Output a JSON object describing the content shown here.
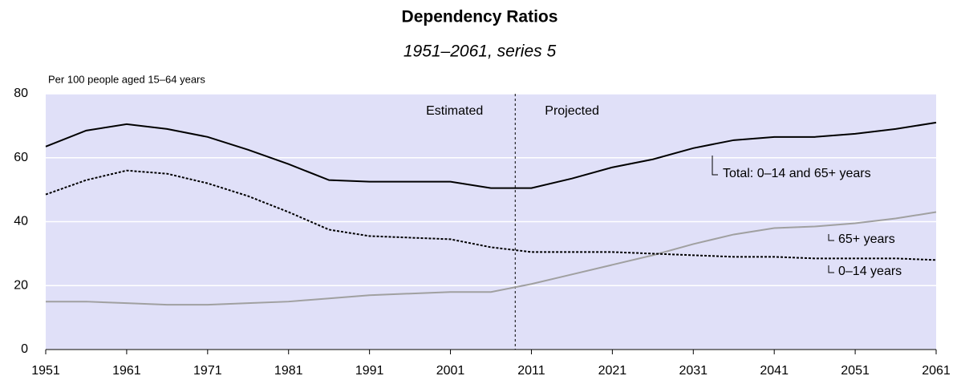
{
  "chart_data": {
    "type": "line",
    "title": "Dependency Ratios",
    "subtitle": "1951–2061, series 5",
    "ylabel": "Per 100 people aged 15–64 years",
    "annotations": [
      "Estimated",
      "Projected"
    ],
    "divider_x": 2009,
    "x": [
      1951,
      1956,
      1961,
      1966,
      1971,
      1976,
      1981,
      1986,
      1991,
      1996,
      2001,
      2006,
      2011,
      2016,
      2021,
      2026,
      2031,
      2036,
      2041,
      2046,
      2051,
      2056,
      2061
    ],
    "series": [
      {
        "name": "Total: 0–14 and 65+ years",
        "color": "#000000",
        "dash": "solid",
        "values": [
          63.5,
          68.5,
          70.5,
          69,
          66.5,
          62.5,
          58,
          53,
          52.5,
          52.5,
          52.5,
          50.5,
          50.5,
          53.5,
          57,
          59.5,
          63,
          65.5,
          66.5,
          66.5,
          67.5,
          69,
          71
        ]
      },
      {
        "name": "65+ years",
        "color": "#a0a0a0",
        "dash": "solid",
        "values": [
          15,
          15,
          14.5,
          14,
          14,
          14.5,
          15,
          16,
          17,
          17.5,
          18,
          18,
          20.5,
          23.5,
          26.5,
          29.5,
          33,
          36,
          38,
          38.5,
          39.5,
          41,
          43
        ]
      },
      {
        "name": "0–14 years",
        "color": "#000000",
        "dash": "dashed",
        "values": [
          48.5,
          53,
          56,
          55,
          52,
          48,
          43,
          37.5,
          35.5,
          35,
          34.5,
          32,
          30.5,
          30.5,
          30.5,
          30,
          29.5,
          29,
          29,
          28.5,
          28.5,
          28.5,
          28
        ]
      }
    ],
    "xlim": [
      1951,
      2061
    ],
    "xticks": [
      1951,
      1961,
      1971,
      1981,
      1991,
      2001,
      2011,
      2021,
      2031,
      2041,
      2051,
      2061
    ],
    "ylim": [
      0,
      80
    ],
    "yticks": [
      0,
      20,
      40,
      60,
      80
    ],
    "grid": true,
    "background": "#e0e0f8"
  }
}
